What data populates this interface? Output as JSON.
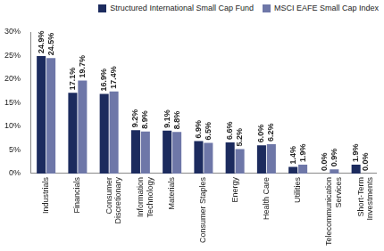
{
  "chart_data": {
    "type": "bar",
    "categories": [
      "Industrials",
      "Financials",
      "Consumer Discretionary",
      "Information Technology",
      "Materials",
      "Consumer Staples",
      "Energy",
      "Health Care",
      "Utilities",
      "Telecommunication Services",
      "Short-Term Investments"
    ],
    "series": [
      {
        "name": "Structured International Small Cap Fund",
        "color": "#1c2b5e",
        "values": [
          24.9,
          17.1,
          16.9,
          9.2,
          9.1,
          6.9,
          6.6,
          6.0,
          1.4,
          0.0,
          1.9
        ],
        "value_labels": [
          "24.9%",
          "17.1%",
          "16.9%",
          "9.2%",
          "9.1%",
          "6.9%",
          "6.6%",
          "6.0%",
          "1.4%",
          "0.0%",
          "1.9%"
        ]
      },
      {
        "name": "MSCI EAFE Small Cap Index",
        "color": "#6e77a8",
        "values": [
          24.5,
          19.7,
          17.4,
          8.9,
          8.8,
          6.5,
          5.2,
          6.2,
          1.9,
          0.9,
          0.0
        ],
        "value_labels": [
          "24.5%",
          "19.7%",
          "17.4%",
          "8.9%",
          "8.8%",
          "6.5%",
          "5.2%",
          "6.2%",
          "1.9%",
          "0.9%",
          "0.0%"
        ]
      }
    ],
    "ylim": [
      0,
      30
    ],
    "yticks": [
      {
        "value": 0,
        "label": "0%"
      },
      {
        "value": 5,
        "label": "5%"
      },
      {
        "value": 10,
        "label": "10%"
      },
      {
        "value": 15,
        "label": "15%"
      },
      {
        "value": 20,
        "label": "20%"
      },
      {
        "value": 25,
        "label": "25%"
      },
      {
        "value": 30,
        "label": "30%"
      }
    ],
    "grid": false,
    "legend": "top",
    "data_labels": true
  }
}
